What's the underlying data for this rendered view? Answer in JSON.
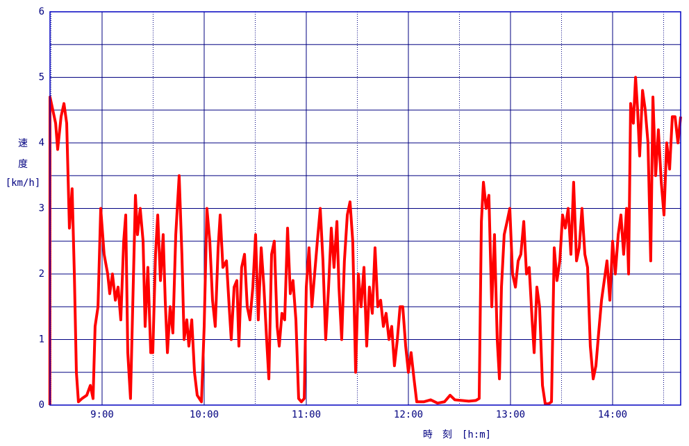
{
  "chart_data": {
    "type": "line",
    "ylabel": [
      "速",
      "度",
      "[km/h]"
    ],
    "xlabel": "時　刻　[h:m]",
    "color": "#ff0000",
    "grid": true,
    "xlim": [
      509.4,
      880
    ],
    "xticks": [
      {
        "value": 540,
        "label": "9:00"
      },
      {
        "value": 600,
        "label": "10:00"
      },
      {
        "value": 660,
        "label": "11:00"
      },
      {
        "value": 720,
        "label": "12:00"
      },
      {
        "value": 780,
        "label": "13:00"
      },
      {
        "value": 840,
        "label": "14:00"
      }
    ],
    "ylim": [
      0,
      6
    ],
    "yticks": [
      0,
      1,
      2,
      3,
      4,
      5,
      6
    ],
    "x": [
      509.3,
      509.4,
      512.7,
      513.9,
      515.9,
      517.6,
      519.2,
      520.0,
      520.8,
      522.4,
      523.7,
      524.9,
      526.1,
      528.2,
      531.0,
      533.1,
      534.7,
      535.9,
      537.6,
      539.2,
      541.2,
      543.3,
      544.5,
      546.1,
      547.8,
      549.4,
      551.0,
      552.7,
      553.9,
      555.1,
      556.7,
      558.0,
      559.6,
      560.8,
      562.4,
      564.1,
      565.3,
      566.9,
      568.6,
      569.8,
      571.4,
      572.7,
      574.3,
      575.9,
      577.1,
      578.4,
      580.0,
      581.6,
      583.3,
      585.3,
      586.9,
      588.2,
      589.8,
      591.0,
      592.7,
      594.3,
      595.9,
      598.4,
      600.0,
      601.6,
      603.3,
      604.9,
      606.5,
      608.2,
      609.4,
      611.0,
      613.1,
      614.7,
      615.9,
      617.6,
      619.2,
      620.4,
      622.0,
      623.7,
      625.3,
      626.9,
      628.6,
      630.2,
      631.8,
      633.5,
      635.1,
      636.7,
      638.0,
      639.6,
      641.2,
      642.9,
      644.1,
      645.7,
      647.3,
      649.0,
      650.6,
      652.2,
      653.9,
      655.5,
      657.1,
      658.8,
      660.0,
      661.6,
      663.3,
      664.9,
      666.5,
      668.2,
      669.8,
      671.4,
      673.1,
      674.7,
      676.3,
      678.0,
      679.2,
      680.8,
      682.4,
      684.1,
      685.7,
      687.3,
      689.0,
      690.6,
      692.2,
      693.9,
      695.5,
      697.1,
      698.8,
      700.4,
      702.0,
      703.7,
      705.3,
      706.9,
      708.6,
      710.2,
      711.8,
      713.5,
      715.1,
      716.7,
      718.4,
      720.0,
      721.6,
      723.3,
      724.9,
      729.0,
      733.1,
      737.1,
      741.2,
      744.5,
      747.3,
      751.4,
      755.5,
      759.6,
      761.6,
      762.9,
      764.1,
      765.7,
      767.3,
      769.0,
      770.6,
      772.2,
      773.5,
      774.7,
      776.3,
      778.0,
      779.6,
      781.2,
      782.9,
      784.5,
      786.1,
      787.8,
      789.4,
      791.0,
      792.7,
      793.9,
      795.5,
      797.1,
      798.8,
      800.4,
      802.4,
      804.1,
      805.7,
      807.3,
      809.0,
      810.6,
      812.2,
      813.9,
      815.5,
      817.1,
      818.8,
      820.4,
      822.0,
      823.7,
      825.3,
      826.9,
      828.6,
      830.2,
      831.8,
      833.5,
      835.1,
      836.7,
      838.4,
      840.0,
      841.6,
      843.3,
      844.9,
      846.5,
      848.2,
      849.4,
      850.6,
      852.2,
      853.5,
      854.7,
      855.9,
      857.6,
      859.2,
      860.8,
      862.4,
      863.7,
      865.3,
      866.9,
      868.6,
      870.2,
      871.8,
      873.5,
      875.1,
      876.7,
      878.4,
      880.0
    ],
    "values": [
      0,
      4.7,
      4.3,
      3.9,
      4.4,
      4.6,
      4.3,
      3.5,
      2.7,
      3.3,
      2.0,
      0.5,
      0.05,
      0.1,
      0.15,
      0.3,
      0.1,
      1.2,
      1.5,
      3.0,
      2.3,
      2.0,
      1.7,
      2.0,
      1.6,
      1.8,
      1.3,
      2.5,
      2.9,
      0.8,
      0.1,
      1.5,
      3.2,
      2.6,
      3.0,
      2.5,
      1.2,
      2.1,
      0.8,
      0.8,
      2.3,
      2.9,
      1.9,
      2.6,
      1.6,
      0.8,
      1.5,
      1.1,
      2.6,
      3.5,
      2.3,
      1.0,
      1.3,
      0.9,
      1.3,
      0.5,
      0.15,
      0.05,
      1.2,
      3.0,
      2.5,
      1.6,
      1.2,
      2.4,
      2.9,
      2.1,
      2.2,
      1.5,
      1.0,
      1.8,
      1.9,
      0.9,
      2.1,
      2.3,
      1.5,
      1.3,
      1.8,
      2.6,
      1.3,
      2.4,
      1.8,
      1.0,
      0.4,
      2.3,
      2.5,
      1.2,
      0.9,
      1.4,
      1.3,
      2.7,
      1.7,
      1.9,
      1.3,
      0.1,
      0.05,
      0.1,
      1.8,
      2.4,
      1.5,
      2.0,
      2.5,
      3.0,
      2.2,
      1.0,
      1.8,
      2.7,
      2.1,
      2.8,
      1.8,
      1.0,
      2.2,
      2.9,
      3.1,
      2.5,
      0.5,
      2.0,
      1.5,
      2.1,
      0.9,
      1.8,
      1.4,
      2.4,
      1.5,
      1.6,
      1.2,
      1.4,
      1.0,
      1.2,
      0.6,
      1.0,
      1.5,
      1.5,
      0.9,
      0.5,
      0.8,
      0.4,
      0.05,
      0.05,
      0.08,
      0.03,
      0.05,
      0.15,
      0.08,
      0.07,
      0.06,
      0.07,
      0.1,
      2.8,
      3.4,
      3.0,
      3.2,
      1.5,
      2.6,
      1.0,
      0.4,
      1.8,
      2.6,
      2.8,
      3.0,
      2.0,
      1.8,
      2.2,
      2.3,
      2.8,
      2.0,
      2.1,
      1.3,
      0.8,
      1.8,
      1.5,
      0.3,
      0.02,
      0.02,
      0.05,
      2.4,
      1.9,
      2.2,
      2.9,
      2.7,
      3.0,
      2.3,
      3.4,
      2.2,
      2.4,
      3.0,
      2.3,
      2.1,
      0.9,
      0.4,
      0.6,
      1.1,
      1.6,
      1.9,
      2.2,
      1.6,
      2.5,
      2.0,
      2.6,
      2.9,
      2.3,
      3.0,
      2.0,
      4.6,
      4.3,
      5.0,
      4.5,
      3.8,
      4.8,
      4.5,
      4.0,
      2.2,
      4.7,
      3.5,
      4.2,
      3.4,
      2.9,
      4.0,
      3.6,
      4.4,
      4.4,
      4.0,
      4.4
    ]
  }
}
